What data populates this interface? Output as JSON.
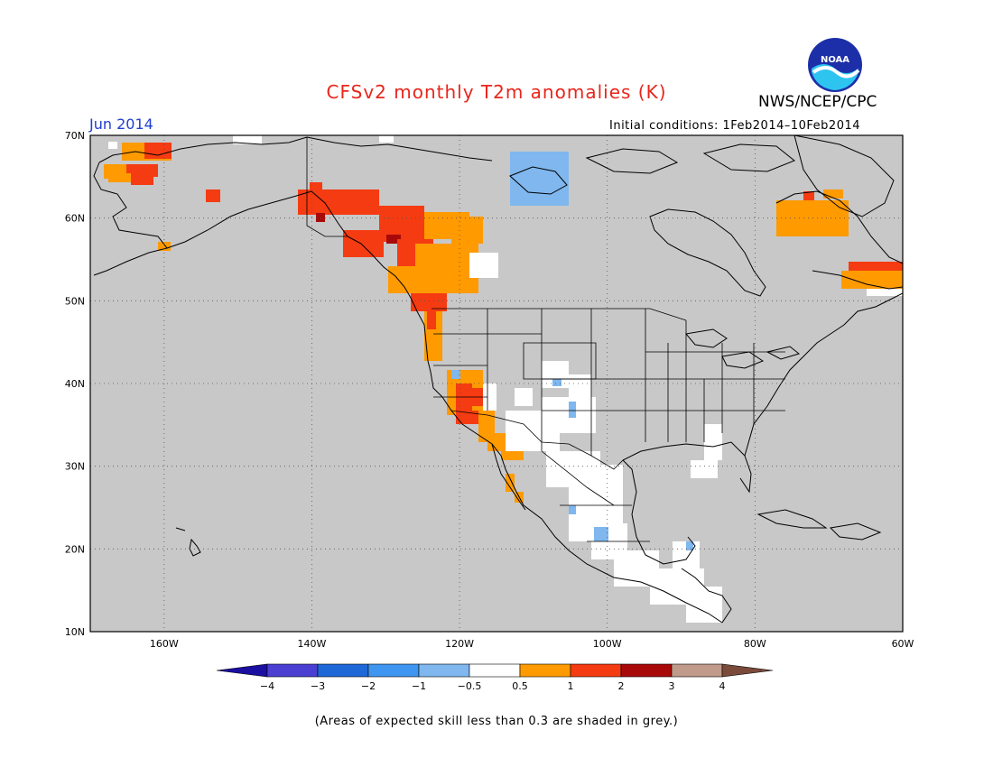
{
  "header": {
    "title": "CFSv2 monthly T2m anomalies (K)",
    "agency": "NWS/NCEP/CPC",
    "logo_text": "NOAA",
    "month": "Jun 2014",
    "initial_conditions": "Initial conditions: 1Feb2014–10Feb2014"
  },
  "axes": {
    "lat_ticks": [
      "70N",
      "60N",
      "50N",
      "40N",
      "30N",
      "20N",
      "10N"
    ],
    "lon_ticks": [
      "160W",
      "140W",
      "120W",
      "100W",
      "80W",
      "60W"
    ],
    "lat_range": [
      10,
      70
    ],
    "lon_range": [
      -170,
      -60
    ],
    "grid": "dotted"
  },
  "colorbar": {
    "labels": [
      "−4",
      "−3",
      "−2",
      "−1",
      "−0.5",
      "0.5",
      "1",
      "2",
      "3",
      "4"
    ],
    "bins": [
      {
        "range": "< -4",
        "color": "#1a0fa0"
      },
      {
        "range": "-4 to -3",
        "color": "#4a3fd0"
      },
      {
        "range": "-3 to -2",
        "color": "#1f68d8"
      },
      {
        "range": "-2 to -1",
        "color": "#3f96f0"
      },
      {
        "range": "-1 to -0.5",
        "color": "#7fb7ee"
      },
      {
        "range": "-0.5 to 0.5",
        "color": "#ffffff"
      },
      {
        "range": "0.5 to 1",
        "color": "#ff9a00"
      },
      {
        "range": "1 to 2",
        "color": "#f53b12"
      },
      {
        "range": "2 to 3",
        "color": "#a80a0a"
      },
      {
        "range": "3 to 4",
        "color": "#c09a8a"
      },
      {
        "range": "> 4",
        "color": "#7a4a3a"
      }
    ]
  },
  "caption": "(Areas of expected skill less than 0.3 are shaded in grey.)",
  "colors": {
    "no_skill_grey": "#c8c8c8",
    "neutral": "#ffffff",
    "warm_1": "#ff9a00",
    "warm_2": "#f53b12",
    "warm_3": "#a80a0a",
    "cool_1": "#7fb7ee",
    "title": "#e8261c",
    "month": "#1f3fd0"
  }
}
